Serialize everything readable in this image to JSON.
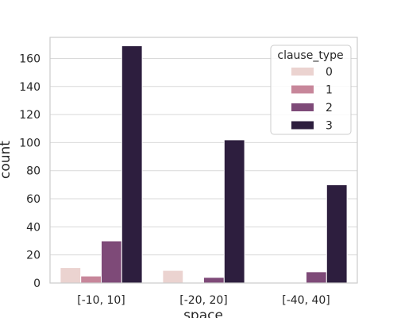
{
  "chart_data": {
    "type": "bar",
    "title": "",
    "xlabel": "space",
    "ylabel": "count",
    "categories": [
      "[-10, 10]",
      "[-20, 20]",
      "[-40, 40]"
    ],
    "ylim": [
      0,
      175
    ],
    "yticks": [
      0,
      20,
      40,
      60,
      80,
      100,
      120,
      140,
      160
    ],
    "grid": "y",
    "legend": {
      "title": "clause_type",
      "placement": "top-right"
    },
    "series": [
      {
        "name": "0",
        "color": "#ebd3d0",
        "values": [
          11,
          9,
          0
        ]
      },
      {
        "name": "1",
        "color": "#c7869a",
        "values": [
          5,
          0,
          0
        ]
      },
      {
        "name": "2",
        "color": "#7e4a78",
        "values": [
          30,
          4,
          8
        ]
      },
      {
        "name": "3",
        "color": "#2d1e3e",
        "values": [
          169,
          102,
          70
        ]
      }
    ]
  }
}
